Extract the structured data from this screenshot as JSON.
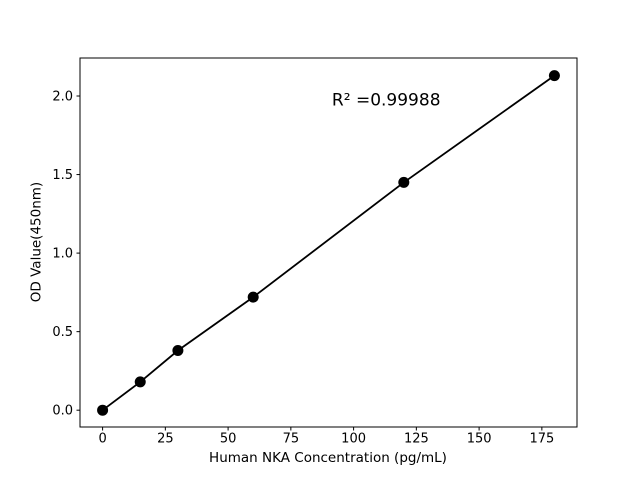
{
  "figure": {
    "background_color": "#ffffff"
  },
  "chart_data": {
    "type": "line",
    "title": "",
    "xlabel": "Human NKA Concentration (pg/mL)",
    "ylabel": "OD Value(450nm)",
    "x": [
      0,
      15,
      30,
      60,
      120,
      180
    ],
    "y": [
      0.0,
      0.18,
      0.38,
      0.72,
      1.45,
      2.13
    ],
    "xlim": [
      -9,
      189
    ],
    "ylim": [
      -0.107,
      2.242
    ],
    "xticks": [
      0,
      25,
      50,
      75,
      100,
      125,
      150,
      175
    ],
    "xtick_labels": [
      "0",
      "25",
      "50",
      "75",
      "100",
      "125",
      "150",
      "175"
    ],
    "yticks": [
      0.0,
      0.5,
      1.0,
      1.5,
      2.0
    ],
    "ytick_labels": [
      "0.0",
      "0.5",
      "1.0",
      "1.5",
      "2.0"
    ],
    "grid": false,
    "legend_position": "none",
    "annotation": {
      "text": "R² =0.99988",
      "x": 113,
      "y": 1.97
    },
    "line_color": "#000000",
    "marker_color": "#000000",
    "marker": "circle",
    "axis_color": "#000000",
    "text_color": "#000000"
  }
}
